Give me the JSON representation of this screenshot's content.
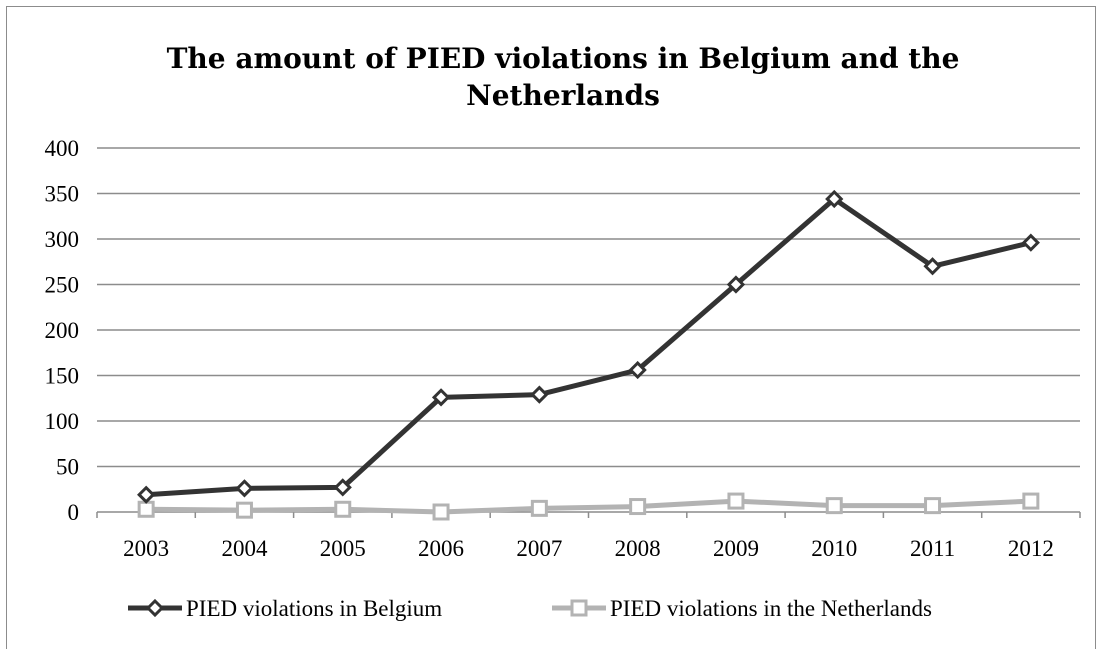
{
  "chart_data": {
    "type": "line",
    "title_line1": "The amount of PIED violations in Belgium and the",
    "title_line2": "Netherlands",
    "x": [
      "2003",
      "2004",
      "2005",
      "2006",
      "2007",
      "2008",
      "2009",
      "2010",
      "2011",
      "2012"
    ],
    "ylim": [
      0,
      400
    ],
    "yticks": [
      "0",
      "50",
      "100",
      "150",
      "200",
      "250",
      "300",
      "350",
      "400"
    ],
    "grid": true,
    "legend_position": "bottom",
    "series": [
      {
        "name": "PIED violations in Belgium",
        "marker": "diamond",
        "color": "#333333",
        "values": [
          19,
          26,
          27,
          126,
          129,
          156,
          250,
          344,
          270,
          296
        ]
      },
      {
        "name": "PIED violations in the Netherlands",
        "marker": "square",
        "color": "#b3b3b3",
        "values": [
          3,
          2,
          3,
          0,
          4,
          6,
          12,
          7,
          7,
          12
        ]
      }
    ]
  }
}
